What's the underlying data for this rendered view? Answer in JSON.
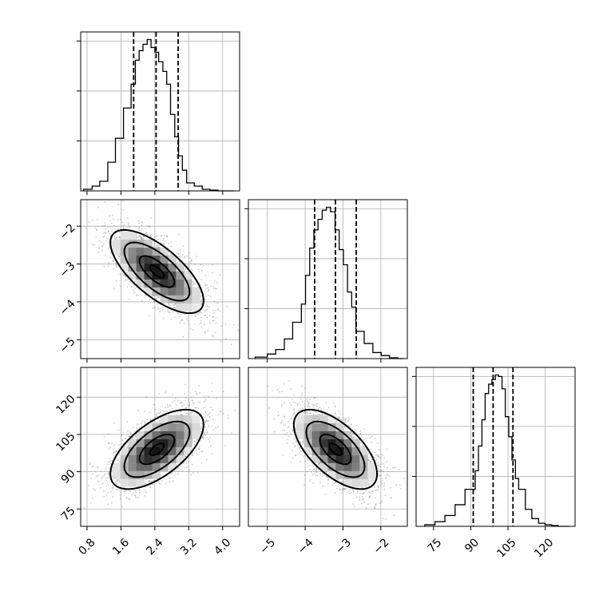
{
  "chart_data": {
    "type": "corner",
    "grid": true,
    "parameters": [
      {
        "range": [
          0.65,
          4.4
        ],
        "ticks": [
          0.8,
          1.6,
          2.4,
          3.2,
          4.0
        ],
        "tick_labels": [
          "0.8",
          "1.6",
          "2.4",
          "3.2",
          "4.0"
        ],
        "quantiles": [
          1.9,
          2.43,
          2.95
        ],
        "hist_edges": [
          0.72,
          0.92,
          1.1,
          1.29,
          1.47,
          1.66,
          1.84,
          1.94,
          2.03,
          2.12,
          2.22,
          2.31,
          2.4,
          2.49,
          2.59,
          2.68,
          2.77,
          2.87,
          2.96,
          3.05,
          3.15,
          3.33,
          3.52,
          3.7,
          3.89,
          4.07,
          4.26
        ],
        "hist_counts": [
          0.01,
          0.03,
          0.06,
          0.18,
          0.33,
          0.52,
          0.67,
          0.82,
          0.88,
          0.92,
          0.95,
          0.9,
          0.87,
          0.81,
          0.75,
          0.67,
          0.48,
          0.34,
          0.22,
          0.13,
          0.05,
          0.03,
          0.01,
          0.005,
          0,
          0
        ]
      },
      {
        "range": [
          -5.5,
          -1.3
        ],
        "ticks": [
          -5,
          -4,
          -3,
          -2
        ],
        "tick_labels": [
          "−5",
          "−4",
          "−3",
          "−2"
        ],
        "quantiles": [
          -3.75,
          -3.2,
          -2.65
        ],
        "hist_edges": [
          -5.32,
          -5.0,
          -4.78,
          -4.55,
          -4.33,
          -4.1,
          -3.99,
          -3.88,
          -3.77,
          -3.66,
          -3.55,
          -3.44,
          -3.33,
          -3.21,
          -3.1,
          -2.99,
          -2.88,
          -2.77,
          -2.66,
          -2.44,
          -2.21,
          -1.99,
          -1.77,
          -1.55,
          -1.4
        ],
        "hist_counts": [
          0.01,
          0.03,
          0.06,
          0.13,
          0.24,
          0.36,
          0.55,
          0.73,
          0.85,
          0.92,
          0.98,
          1.0,
          0.97,
          0.85,
          0.72,
          0.62,
          0.44,
          0.34,
          0.18,
          0.1,
          0.04,
          0.02,
          0.005,
          0
        ]
      },
      {
        "range": [
          68,
          132
        ],
        "ticks": [
          75,
          90,
          105,
          120
        ],
        "tick_labels": [
          "75",
          "90",
          "105",
          "120"
        ],
        "quantiles": [
          91,
          99,
          107
        ],
        "hist_edges": [
          71.5,
          75.6,
          79.6,
          83.7,
          87.7,
          91.8,
          93.1,
          94.5,
          95.8,
          97.2,
          98.5,
          99.9,
          101.2,
          102.6,
          103.9,
          105.3,
          106.6,
          108.0,
          109.3,
          112.0,
          114.6,
          117.3,
          119.9,
          122.6,
          125.2,
          127.8,
          129.7
        ],
        "hist_counts": [
          0.01,
          0.03,
          0.07,
          0.14,
          0.24,
          0.36,
          0.52,
          0.69,
          0.86,
          0.92,
          0.95,
          0.98,
          0.97,
          0.89,
          0.71,
          0.58,
          0.43,
          0.31,
          0.24,
          0.11,
          0.05,
          0.02,
          0.01,
          0.005,
          0,
          0
        ]
      }
    ],
    "pairs": [
      {
        "row": 1,
        "col": 0,
        "mean": [
          2.45,
          -3.2
        ],
        "sd": [
          0.55,
          0.55
        ],
        "rho": -0.7,
        "levels": [
          0.3,
          0.75,
          1.4,
          2.0
        ]
      },
      {
        "row": 2,
        "col": 0,
        "mean": [
          2.45,
          99
        ],
        "sd": [
          0.55,
          8.0
        ],
        "rho": 0.62,
        "levels": [
          0.3,
          0.75,
          1.4,
          2.0
        ]
      },
      {
        "row": 2,
        "col": 1,
        "mean": [
          -3.2,
          99
        ],
        "sd": [
          0.55,
          8.0
        ],
        "rho": -0.62,
        "levels": [
          0.3,
          0.75,
          1.4,
          2.0
        ]
      }
    ]
  }
}
